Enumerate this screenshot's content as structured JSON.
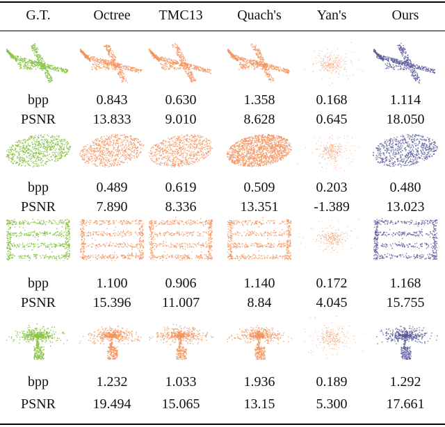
{
  "header": [
    "G.T.",
    "Octree",
    "TMC13",
    "Quach's",
    "Yan's",
    "Ours"
  ],
  "row_labels": {
    "bpp": "bpp",
    "psnr": "PSNR"
  },
  "colors": {
    "gt": "#8cc54a",
    "baseline": "#f4935c",
    "ours": "#5b5b9c"
  },
  "samples": [
    {
      "object": "airplane",
      "bpp": [
        "0.843",
        "0.630",
        "1.358",
        "0.168",
        "1.114"
      ],
      "psnr": [
        "13.833",
        "9.010",
        "8.628",
        "0.645",
        "18.050"
      ]
    },
    {
      "object": "bowl",
      "bpp": [
        "0.489",
        "0.619",
        "0.509",
        "0.203",
        "0.480"
      ],
      "psnr": [
        "7.890",
        "8.336",
        "13.351",
        "-1.389",
        "13.023"
      ]
    },
    {
      "object": "shelf",
      "bpp": [
        "1.100",
        "0.906",
        "1.140",
        "0.172",
        "1.168"
      ],
      "psnr": [
        "15.396",
        "11.007",
        "8.84",
        "4.045",
        "15.755"
      ]
    },
    {
      "object": "plant",
      "bpp": [
        "1.232",
        "1.033",
        "1.936",
        "0.189",
        "1.292"
      ],
      "psnr": [
        "19.494",
        "15.065",
        "13.15",
        "5.300",
        "17.661"
      ]
    }
  ]
}
